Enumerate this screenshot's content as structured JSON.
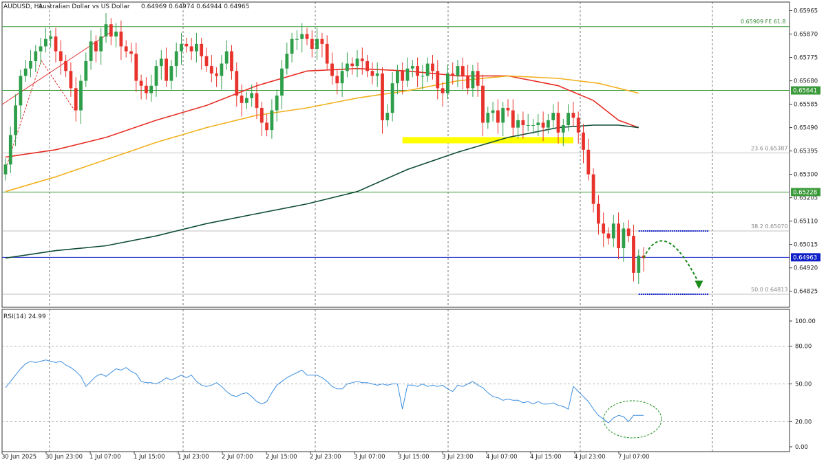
{
  "header": {
    "symbol": "AUDUSD, H1:",
    "description": "Australian Dollar vs US Dollar",
    "ohlc": "0.64969 0.64974 0.64944 0.64965"
  },
  "colors": {
    "background": "#ffffff",
    "bull": "#2e9e4a",
    "bear": "#e8322c",
    "ma_fast": "#e62e24",
    "ma_mid": "#f2b01e",
    "ma_slow": "#0f4d35",
    "support_line": "#3a9a3a",
    "current_line": "#1020c8",
    "fib_line": "#aaaaaa",
    "highlight_zone": "#ffff00",
    "rsi_line": "#3a8ee0",
    "projection": "#1a8a1a",
    "annotation_ellipse": "#3aa03a"
  },
  "chart_data": [
    {
      "type": "candlestick",
      "title": "AUDUSD, H1: Australian Dollar vs US Dollar",
      "ylim": [
        0.6476,
        0.66
      ],
      "y_ticks": [
        "0.65965",
        "0.65870",
        "0.65775",
        "0.65680",
        "0.65585",
        "0.65490",
        "0.65395",
        "0.65300",
        "0.65205",
        "0.65110",
        "0.65015",
        "0.64920",
        "0.64825"
      ],
      "x_labels": [
        "30 Jun 2025",
        "30 Jun 23:00",
        "1 Jul 07:00",
        "1 Jul 15:00",
        "1 Jul 23:00",
        "2 Jul 07:00",
        "2 Jul 15:00",
        "2 Jul 23:00",
        "3 Jul 07:00",
        "3 Jul 15:00",
        "3 Jul 23:00",
        "4 Jul 07:00",
        "4 Jul 15:00",
        "4 Jul 23:00",
        "7 Jul 07:00"
      ],
      "close": [
        0.6534,
        0.6546,
        0.6558,
        0.657,
        0.6573,
        0.6576,
        0.658,
        0.6582,
        0.6585,
        0.6586,
        0.658,
        0.6576,
        0.6572,
        0.6565,
        0.6556,
        0.6568,
        0.6576,
        0.6584,
        0.658,
        0.6586,
        0.6591,
        0.6586,
        0.6588,
        0.6582,
        0.658,
        0.6579,
        0.6568,
        0.6566,
        0.6563,
        0.6566,
        0.6574,
        0.6577,
        0.6568,
        0.6574,
        0.658,
        0.6583,
        0.6582,
        0.658,
        0.6583,
        0.6578,
        0.6574,
        0.6571,
        0.657,
        0.6575,
        0.658,
        0.6572,
        0.6562,
        0.6559,
        0.6561,
        0.6563,
        0.6557,
        0.6551,
        0.6548,
        0.6556,
        0.6562,
        0.6573,
        0.6579,
        0.6585,
        0.6585,
        0.6587,
        0.6585,
        0.6581,
        0.6585,
        0.6583,
        0.6575,
        0.657,
        0.6567,
        0.6572,
        0.6575,
        0.6574,
        0.6577,
        0.6576,
        0.6572,
        0.657,
        0.6571,
        0.6552,
        0.6555,
        0.6567,
        0.6572,
        0.6568,
        0.6573,
        0.6574,
        0.657,
        0.657,
        0.6575,
        0.6572,
        0.6565,
        0.6563,
        0.6571,
        0.657,
        0.6574,
        0.657,
        0.6565,
        0.6572,
        0.6566,
        0.6551,
        0.6555,
        0.6556,
        0.6551,
        0.6557,
        0.6556,
        0.6549,
        0.6552,
        0.655,
        0.655,
        0.655,
        0.6551,
        0.6549,
        0.6552,
        0.6555,
        0.6547,
        0.655,
        0.6555,
        0.6553,
        0.6547,
        0.654,
        0.653,
        0.6518,
        0.651,
        0.6506,
        0.6504,
        0.651,
        0.65,
        0.6508,
        0.6505,
        0.649,
        0.6497,
        0.6496
      ],
      "annotations": [
        "23.6 0.65387",
        "38.2 0.65070",
        "50.0 0.64813",
        "0.65909 FE 61.8"
      ],
      "price_labels": [
        {
          "label": "0.65641",
          "value": 0.65641,
          "color": "#3a9a3a"
        },
        {
          "label": "0.65228",
          "value": 0.65228,
          "color": "#3a9a3a"
        },
        {
          "label": "0.64963",
          "value": 0.64963,
          "color": "#1020c8"
        }
      ],
      "horizontal_lines": [
        {
          "value": 0.659,
          "kind": "support"
        },
        {
          "value": 0.65641,
          "kind": "support"
        },
        {
          "value": 0.65387,
          "kind": "fib"
        },
        {
          "value": 0.65228,
          "kind": "support"
        },
        {
          "value": 0.6507,
          "kind": "fib"
        },
        {
          "value": 0.64963,
          "kind": "current"
        },
        {
          "value": 0.64813,
          "kind": "fib"
        }
      ],
      "moving_averages": [
        {
          "color_key": "ma_fast",
          "points": [
            [
              0,
              0.6537
            ],
            [
              10,
              0.654
            ],
            [
              20,
              0.6545
            ],
            [
              30,
              0.6552
            ],
            [
              40,
              0.6558
            ],
            [
              50,
              0.6566
            ],
            [
              60,
              0.6572
            ],
            [
              70,
              0.6573
            ],
            [
              80,
              0.6572
            ],
            [
              90,
              0.657
            ],
            [
              100,
              0.657
            ],
            [
              110,
              0.6566
            ],
            [
              117,
              0.656
            ],
            [
              122,
              0.6552
            ],
            [
              126,
              0.6549
            ]
          ]
        },
        {
          "color_key": "ma_mid",
          "points": [
            [
              0,
              0.6523
            ],
            [
              10,
              0.6529
            ],
            [
              20,
              0.6536
            ],
            [
              30,
              0.6543
            ],
            [
              40,
              0.6549
            ],
            [
              50,
              0.6554
            ],
            [
              60,
              0.6557
            ],
            [
              70,
              0.6561
            ],
            [
              80,
              0.6564
            ],
            [
              90,
              0.6568
            ],
            [
              100,
              0.657
            ],
            [
              110,
              0.6569
            ],
            [
              118,
              0.6567
            ],
            [
              122,
              0.6565
            ],
            [
              126,
              0.6563
            ]
          ]
        },
        {
          "color_key": "ma_slow",
          "points": [
            [
              0,
              0.6496
            ],
            [
              10,
              0.6499
            ],
            [
              20,
              0.6501
            ],
            [
              30,
              0.6505
            ],
            [
              40,
              0.651
            ],
            [
              50,
              0.6514
            ],
            [
              60,
              0.6518
            ],
            [
              70,
              0.6523
            ],
            [
              80,
              0.6532
            ],
            [
              90,
              0.6539
            ],
            [
              100,
              0.6545
            ],
            [
              110,
              0.6549
            ],
            [
              117,
              0.655
            ],
            [
              122,
              0.655
            ],
            [
              126,
              0.6549
            ]
          ]
        }
      ],
      "highlight_zone": {
        "from": 79,
        "to": 113,
        "top": 0.6544,
        "bottom": 0.6543
      },
      "projection": {
        "from_index": 127,
        "from_value": 0.6496,
        "peak_value": 0.6507,
        "to_index": 138,
        "to_value": 0.6484,
        "target_line_from": 126,
        "target_line_to": 140
      }
    },
    {
      "type": "line",
      "title": "RSI(14) 24.99",
      "ylim": [
        0,
        100
      ],
      "y_ticks": [
        "100.00",
        "80.00",
        "50.00",
        "20.00",
        "0.00"
      ],
      "values": [
        47,
        52,
        57,
        62,
        66,
        68,
        67,
        68,
        69,
        68,
        67,
        68,
        65,
        63,
        60,
        56,
        48,
        52,
        56,
        58,
        56,
        59,
        62,
        61,
        63,
        60,
        58,
        52,
        51,
        51,
        50,
        52,
        55,
        53,
        55,
        57,
        55,
        57,
        52,
        49,
        48,
        49,
        51,
        48,
        44,
        41,
        40,
        42,
        43,
        40,
        36,
        34,
        36,
        43,
        49,
        52,
        55,
        57,
        59,
        61,
        57,
        57,
        57,
        55,
        52,
        48,
        46,
        46,
        50,
        51,
        52,
        51,
        51,
        50,
        49,
        50,
        49,
        50,
        50,
        30,
        49,
        49,
        48,
        50,
        48,
        49,
        48,
        49,
        46,
        44,
        49,
        48,
        50,
        52,
        49,
        47,
        43,
        40,
        39,
        37,
        38,
        37,
        37,
        35,
        36,
        34,
        36,
        34,
        34,
        35,
        33,
        32,
        30,
        48,
        44,
        40,
        36,
        30,
        25,
        22,
        19,
        23,
        25,
        24,
        20,
        25,
        25,
        25
      ],
      "levels": [
        80,
        50,
        20
      ]
    }
  ]
}
